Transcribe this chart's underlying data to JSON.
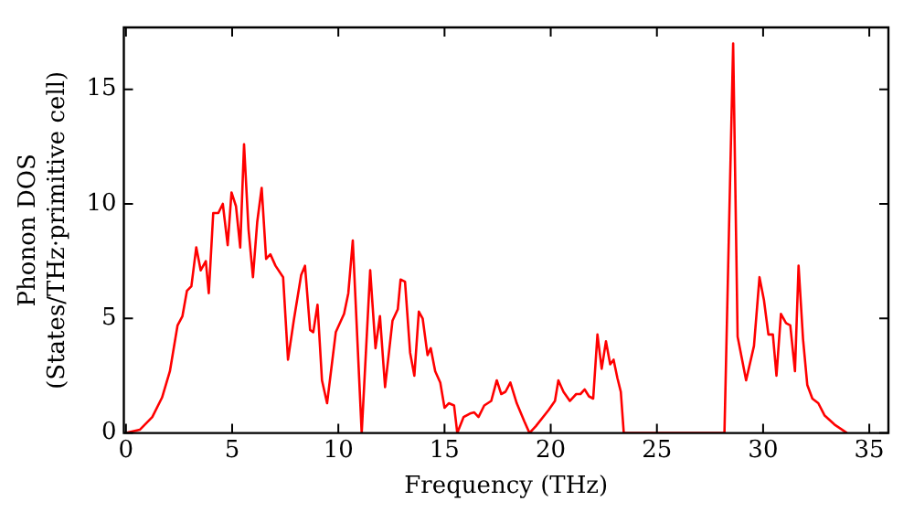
{
  "chart_data": {
    "type": "line",
    "xlabel": "Frequency (THz)",
    "ylabel": "Phonon DOS\n(States/THz·primitive cell)",
    "xlim": [
      -0.1,
      35.9
    ],
    "ylim": [
      0,
      17.7
    ],
    "xticks": [
      0,
      5,
      10,
      15,
      20,
      25,
      30,
      35
    ],
    "yticks": [
      0,
      5,
      10,
      15
    ],
    "grid": false,
    "legend": false,
    "marker": "none",
    "line_style": "solid",
    "series": [
      {
        "color": "#ff0000",
        "x": [
          0,
          0.65,
          1.24,
          1.7,
          2.07,
          2.43,
          2.66,
          2.87,
          3.08,
          3.31,
          3.52,
          3.76,
          3.9,
          4.11,
          4.35,
          4.56,
          4.79,
          4.97,
          5.18,
          5.38,
          5.56,
          5.77,
          5.98,
          6.18,
          6.39,
          6.6,
          6.8,
          7.04,
          7.4,
          7.63,
          7.9,
          8.25,
          8.43,
          8.67,
          8.82,
          9.02,
          9.23,
          9.47,
          9.88,
          10.27,
          10.47,
          10.68,
          11.1,
          11.5,
          11.75,
          11.96,
          12.2,
          12.55,
          12.8,
          12.93,
          13.14,
          13.38,
          13.58,
          13.79,
          13.97,
          14.2,
          14.35,
          14.56,
          14.8,
          15.0,
          15.2,
          15.45,
          15.6,
          15.9,
          16.2,
          16.4,
          16.6,
          16.87,
          17.2,
          17.46,
          17.67,
          17.87,
          18.1,
          18.4,
          18.76,
          19.0,
          19.3,
          19.9,
          20.2,
          20.36,
          20.6,
          20.9,
          21.2,
          21.4,
          21.6,
          21.8,
          22.0,
          22.2,
          22.4,
          22.6,
          22.8,
          22.96,
          23.14,
          23.3,
          23.44,
          28.18,
          28.59,
          28.8,
          29.2,
          29.57,
          29.83,
          30.04,
          30.25,
          30.46,
          30.63,
          30.84,
          31.08,
          31.28,
          31.5,
          31.67,
          31.88,
          32.08,
          32.32,
          32.6,
          32.9,
          33.36,
          33.95
        ],
        "values": [
          0,
          0.14,
          0.7,
          1.55,
          2.7,
          4.7,
          5.1,
          6.2,
          6.4,
          8.1,
          7.1,
          7.5,
          6.1,
          9.6,
          9.6,
          10.0,
          8.2,
          10.5,
          9.9,
          8.1,
          12.6,
          8.9,
          6.8,
          9.2,
          10.7,
          7.6,
          7.8,
          7.3,
          6.8,
          3.2,
          4.9,
          6.9,
          7.3,
          4.5,
          4.4,
          5.6,
          2.3,
          1.3,
          4.4,
          5.2,
          6.1,
          8.4,
          0,
          7.1,
          3.7,
          5.1,
          2.0,
          4.9,
          5.4,
          6.7,
          6.6,
          3.5,
          2.5,
          5.3,
          5.0,
          3.4,
          3.7,
          2.7,
          2.2,
          1.1,
          1.3,
          1.2,
          0,
          0.7,
          0.85,
          0.9,
          0.7,
          1.2,
          1.4,
          2.3,
          1.7,
          1.8,
          2.2,
          1.3,
          0.5,
          0,
          0.3,
          1.0,
          1.4,
          2.3,
          1.8,
          1.4,
          1.7,
          1.7,
          1.9,
          1.6,
          1.5,
          4.3,
          2.8,
          4.0,
          3.0,
          3.2,
          2.4,
          1.8,
          0,
          0,
          17.0,
          4.2,
          2.3,
          3.8,
          6.8,
          5.8,
          4.3,
          4.3,
          2.5,
          5.2,
          4.8,
          4.7,
          2.7,
          7.3,
          4.1,
          2.1,
          1.5,
          1.3,
          0.76,
          0.37,
          0
        ]
      }
    ]
  }
}
